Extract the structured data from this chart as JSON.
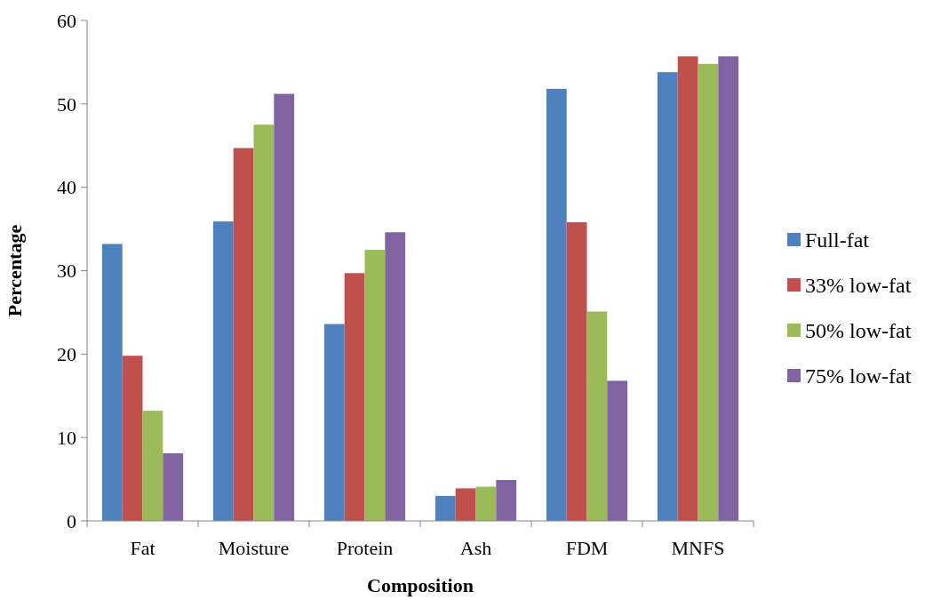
{
  "chart_data": {
    "type": "bar",
    "xlabel": "Composition",
    "ylabel": "Percentage",
    "categories": [
      "Fat",
      "Moisture",
      "Protein",
      "Ash",
      "FDM",
      "MNFS"
    ],
    "series": [
      {
        "name": "Full-fat",
        "color": "#4f81bd",
        "values": [
          33.2,
          35.9,
          23.6,
          3.0,
          51.8,
          53.8
        ]
      },
      {
        "name": "33% low-fat",
        "color": "#c0504d",
        "values": [
          19.8,
          44.7,
          29.7,
          3.9,
          35.8,
          55.7
        ]
      },
      {
        "name": "50% low-fat",
        "color": "#9bbb59",
        "values": [
          13.2,
          47.5,
          32.5,
          4.1,
          25.1,
          54.8
        ]
      },
      {
        "name": "75% low-fat",
        "color": "#8064a2",
        "values": [
          8.1,
          51.2,
          34.6,
          4.9,
          16.8,
          55.7
        ]
      }
    ],
    "ylim": [
      0,
      60
    ],
    "yticks": [
      0,
      10,
      20,
      30,
      40,
      50,
      60
    ],
    "grid": false,
    "legend": "right"
  }
}
